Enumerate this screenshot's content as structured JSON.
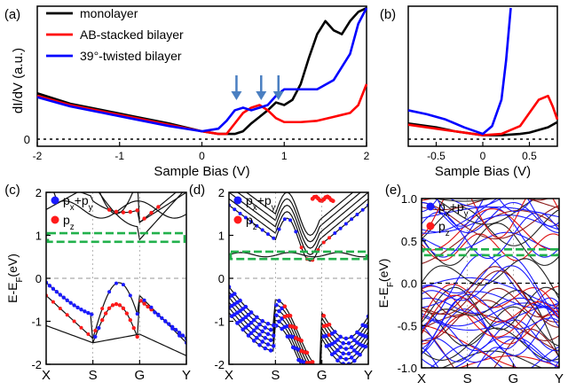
{
  "chart_data": [
    {
      "id": "a",
      "type": "line",
      "panel_label": "(a)",
      "xlabel": "Sample Bias (V)",
      "ylabel": "dI/dV (a.u.)",
      "xlim": [
        -2,
        2
      ],
      "ylim": [
        0,
        1
      ],
      "xticks": [
        "-2",
        "-1",
        "0",
        "1",
        "2"
      ],
      "yticks": [
        "0"
      ],
      "legend": [
        "monolayer",
        "AB-stacked bilayer",
        "39°-twisted bilayer"
      ],
      "annotations": "arrows at 0.42 V, 0.72 V, 0.93 V",
      "series": [
        {
          "name": "monolayer",
          "color": "#000000",
          "x": [
            -2,
            -1.6,
            -1.2,
            -0.8,
            -0.4,
            0,
            0.2,
            0.4,
            0.5,
            0.6,
            0.7,
            0.8,
            0.9,
            1.0,
            1.1,
            1.2,
            1.3,
            1.4,
            1.5,
            1.6,
            1.7,
            1.8,
            1.9,
            2.0
          ],
          "y": [
            0.35,
            0.27,
            0.22,
            0.17,
            0.12,
            0.06,
            0.04,
            0.04,
            0.06,
            0.12,
            0.17,
            0.22,
            0.28,
            0.26,
            0.3,
            0.42,
            0.62,
            0.8,
            0.9,
            0.83,
            0.8,
            0.9,
            0.97,
            1.0
          ]
        },
        {
          "name": "AB-stacked bilayer",
          "color": "#ff0000",
          "x": [
            -2,
            -1.6,
            -1.2,
            -0.8,
            -0.4,
            0,
            0.2,
            0.3,
            0.4,
            0.5,
            0.6,
            0.7,
            0.8,
            0.9,
            1.0,
            1.2,
            1.4,
            1.6,
            1.8,
            1.9,
            2.0
          ],
          "y": [
            0.33,
            0.26,
            0.21,
            0.16,
            0.11,
            0.06,
            0.04,
            0.04,
            0.12,
            0.2,
            0.24,
            0.26,
            0.22,
            0.16,
            0.13,
            0.13,
            0.14,
            0.17,
            0.2,
            0.26,
            0.42
          ]
        },
        {
          "name": "39°-twisted bilayer",
          "color": "#0000ff",
          "x": [
            -2,
            -1.6,
            -1.2,
            -0.8,
            -0.4,
            0,
            0.2,
            0.3,
            0.4,
            0.5,
            0.6,
            0.7,
            0.8,
            0.9,
            1.0,
            1.2,
            1.4,
            1.6,
            1.8,
            1.9,
            2.0
          ],
          "y": [
            0.32,
            0.25,
            0.2,
            0.15,
            0.1,
            0.06,
            0.08,
            0.14,
            0.22,
            0.24,
            0.22,
            0.24,
            0.26,
            0.33,
            0.38,
            0.38,
            0.38,
            0.45,
            0.65,
            0.88,
            1.0
          ]
        }
      ]
    },
    {
      "id": "b",
      "type": "line",
      "panel_label": "(b)",
      "xlabel": "Sample Bias (V)",
      "xlim": [
        -0.8,
        0.8
      ],
      "ylim": [
        0,
        1
      ],
      "xticks": [
        "-0.5",
        "0",
        "0.5"
      ],
      "series": [
        {
          "name": "monolayer",
          "color": "#000000",
          "x": [
            -0.8,
            -0.5,
            -0.3,
            -0.1,
            0,
            0.2,
            0.4,
            0.5,
            0.6,
            0.7,
            0.8
          ],
          "y": [
            0.12,
            0.09,
            0.06,
            0.04,
            0.03,
            0.03,
            0.04,
            0.05,
            0.07,
            0.09,
            0.13
          ]
        },
        {
          "name": "AB-stacked bilayer",
          "color": "#ff0000",
          "x": [
            -0.8,
            -0.5,
            -0.3,
            -0.1,
            0,
            0.2,
            0.4,
            0.5,
            0.6,
            0.7,
            0.75,
            0.8
          ],
          "y": [
            0.11,
            0.08,
            0.06,
            0.04,
            0.03,
            0.04,
            0.1,
            0.2,
            0.3,
            0.33,
            0.25,
            0.15
          ]
        },
        {
          "name": "39°-twisted bilayer",
          "color": "#0000ff",
          "x": [
            -0.8,
            -0.6,
            -0.4,
            -0.2,
            0,
            0.1,
            0.2,
            0.25,
            0.3
          ],
          "y": [
            0.22,
            0.19,
            0.15,
            0.09,
            0.04,
            0.1,
            0.3,
            0.6,
            1.0
          ]
        }
      ]
    },
    {
      "id": "c",
      "type": "band-structure",
      "panel_label": "(c)",
      "ylabel": "E-E_F(eV)",
      "ylim": [
        -2,
        2
      ],
      "yticks": [
        "2",
        "1",
        "0",
        "-1",
        "-2"
      ],
      "xticks": [
        "X",
        "S",
        "G",
        "Y"
      ],
      "legend": [
        "p_x+p_y",
        "p_z"
      ],
      "highlight_box": [
        0.85,
        1.05
      ]
    },
    {
      "id": "d",
      "type": "band-structure",
      "panel_label": "(d)",
      "ylim": [
        -2,
        2
      ],
      "yticks": [
        "2",
        "1",
        "0",
        "-1",
        "-2"
      ],
      "xticks": [
        "X",
        "S",
        "G",
        "Y"
      ],
      "legend": [
        "p_x+p_y",
        "p_z"
      ],
      "highlight_box": [
        0.45,
        0.62
      ]
    },
    {
      "id": "e",
      "type": "band-structure",
      "panel_label": "(e)",
      "ylabel": "E-E_F(eV)",
      "ylim": [
        -1,
        1
      ],
      "yticks": [
        "1.0",
        "0.5",
        "0.0",
        "-0.5",
        "-1.0"
      ],
      "xticks": [
        "X",
        "S",
        "G",
        "Y"
      ],
      "legend": [
        "p_x+p_y",
        "p_z"
      ],
      "highlight_box": [
        0.33,
        0.4
      ]
    }
  ],
  "colors": {
    "orbital_pxpy": "#1a1aff",
    "orbital_pz": "#ff1a1a",
    "box": "#22b14c"
  }
}
